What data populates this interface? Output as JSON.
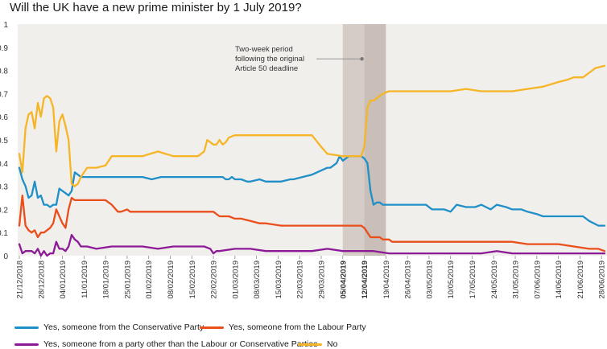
{
  "chart_data": {
    "type": "line",
    "title": "Will the UK have a new prime minister by 1 July 2019?",
    "xlabel": "",
    "ylabel": "",
    "ylim": [
      0,
      1
    ],
    "yticks": [
      "0",
      "0.1",
      "0.2",
      "0.3",
      "0.4",
      "0.5",
      "0.6",
      "0.7",
      "0.8",
      "0.9",
      "1"
    ],
    "xlim": [
      0,
      190
    ],
    "x_tick_labels": [
      "21/12/2018",
      "28/12/2018",
      "04/01/2019",
      "11/01/2019",
      "18/01/2019",
      "25/01/2019",
      "01/02/2019",
      "08/02/2019",
      "15/02/2019",
      "22/02/2019",
      "01/03/2019",
      "08/03/2019",
      "15/03/2019",
      "22/03/2019",
      "29/03/2019",
      "05/04/2019",
      "12/04/2019",
      "19/04/2019",
      "26/04/2019",
      "03/05/2019",
      "10/05/2019",
      "17/05/2019",
      "24/05/2019",
      "31/05/2019",
      "07/06/2019",
      "14/06/2019",
      "21/06/2019",
      "28/06/2019"
    ],
    "x_note": "x values are days since 21/12/2018",
    "bold_ticks": [
      "05/04/2019",
      "12/04/2019"
    ],
    "shaded_periods": [
      [
        105,
        112
      ],
      [
        112,
        119
      ]
    ],
    "annotation": {
      "text_lines": [
        "Two-week period",
        "following the original",
        "Article 50 deadline"
      ],
      "point_x": 112,
      "point_y": 0.85
    },
    "series": [
      {
        "name": "Yes, someone from the Conservative Party",
        "color": "#1f8fc8",
        "x": [
          0,
          1,
          2,
          3,
          4,
          5,
          6,
          7,
          8,
          9,
          10,
          11,
          12,
          13,
          14,
          15,
          16,
          17,
          18,
          19,
          20,
          21,
          22,
          23,
          24,
          25,
          26,
          28,
          30,
          33,
          36,
          40,
          43,
          46,
          47,
          50,
          55,
          60,
          63,
          64,
          65,
          66,
          67,
          68,
          69,
          70,
          72,
          74,
          75,
          78,
          80,
          85,
          88,
          89,
          95,
          100,
          101,
          103,
          104,
          105,
          106,
          107,
          108,
          109,
          110,
          111,
          112,
          113,
          114,
          115,
          116,
          117,
          118,
          120,
          125,
          130,
          132,
          134,
          136,
          138,
          140,
          142,
          145,
          148,
          150,
          153,
          155,
          158,
          160,
          163,
          165,
          168,
          170,
          172,
          175,
          178,
          180,
          183,
          185,
          188,
          190
        ],
        "y": [
          0.38,
          0.33,
          0.3,
          0.25,
          0.26,
          0.32,
          0.25,
          0.26,
          0.22,
          0.22,
          0.21,
          0.22,
          0.22,
          0.29,
          0.28,
          0.27,
          0.26,
          0.28,
          0.36,
          0.35,
          0.34,
          0.34,
          0.34,
          0.34,
          0.34,
          0.34,
          0.34,
          0.34,
          0.34,
          0.34,
          0.34,
          0.34,
          0.33,
          0.34,
          0.34,
          0.34,
          0.34,
          0.34,
          0.34,
          0.34,
          0.34,
          0.34,
          0.33,
          0.33,
          0.34,
          0.33,
          0.33,
          0.32,
          0.32,
          0.33,
          0.32,
          0.32,
          0.33,
          0.33,
          0.35,
          0.38,
          0.38,
          0.4,
          0.43,
          0.41,
          0.42,
          0.43,
          0.43,
          0.43,
          0.43,
          0.43,
          0.42,
          0.4,
          0.28,
          0.22,
          0.23,
          0.23,
          0.22,
          0.22,
          0.22,
          0.22,
          0.22,
          0.2,
          0.2,
          0.2,
          0.19,
          0.22,
          0.21,
          0.21,
          0.22,
          0.2,
          0.22,
          0.21,
          0.2,
          0.2,
          0.19,
          0.18,
          0.17,
          0.17,
          0.17,
          0.17,
          0.17,
          0.17,
          0.15,
          0.13,
          0.13
        ]
      },
      {
        "name": "Yes, someone from the Labour Party",
        "color": "#ea4e1b",
        "x": [
          0,
          1,
          2,
          3,
          4,
          5,
          6,
          7,
          8,
          9,
          10,
          11,
          12,
          13,
          14,
          15,
          16,
          17,
          18,
          19,
          20,
          22,
          25,
          28,
          30,
          32,
          33,
          35,
          36,
          40,
          45,
          50,
          55,
          60,
          63,
          64,
          65,
          68,
          70,
          72,
          75,
          78,
          80,
          85,
          88,
          90,
          95,
          100,
          105,
          110,
          111,
          112,
          113,
          114,
          115,
          116,
          117,
          118,
          119,
          120,
          121,
          125,
          130,
          135,
          140,
          145,
          150,
          155,
          158,
          160,
          165,
          170,
          172,
          175,
          180,
          185,
          188,
          190
        ],
        "y": [
          0.13,
          0.26,
          0.13,
          0.11,
          0.1,
          0.11,
          0.08,
          0.1,
          0.1,
          0.11,
          0.12,
          0.14,
          0.2,
          0.17,
          0.14,
          0.12,
          0.2,
          0.25,
          0.24,
          0.24,
          0.24,
          0.24,
          0.24,
          0.24,
          0.22,
          0.19,
          0.19,
          0.2,
          0.19,
          0.19,
          0.19,
          0.19,
          0.19,
          0.19,
          0.19,
          0.18,
          0.17,
          0.17,
          0.16,
          0.16,
          0.15,
          0.14,
          0.14,
          0.13,
          0.13,
          0.13,
          0.13,
          0.13,
          0.13,
          0.13,
          0.13,
          0.12,
          0.1,
          0.08,
          0.08,
          0.08,
          0.08,
          0.07,
          0.07,
          0.07,
          0.06,
          0.06,
          0.06,
          0.06,
          0.06,
          0.06,
          0.06,
          0.06,
          0.06,
          0.06,
          0.05,
          0.05,
          0.05,
          0.05,
          0.04,
          0.03,
          0.03,
          0.02
        ]
      },
      {
        "name": "Yes, someone from a party other than the Labour or Conservative Parties",
        "color": "#8c1a96",
        "x": [
          0,
          1,
          2,
          3,
          4,
          5,
          6,
          7,
          8,
          9,
          10,
          11,
          12,
          13,
          14,
          15,
          16,
          17,
          18,
          19,
          20,
          22,
          25,
          30,
          35,
          40,
          45,
          50,
          55,
          60,
          62,
          63,
          64,
          65,
          70,
          75,
          80,
          85,
          90,
          95,
          100,
          105,
          110,
          115,
          120,
          125,
          130,
          135,
          140,
          145,
          150,
          155,
          160,
          165,
          170,
          175,
          180,
          185,
          190
        ],
        "y": [
          0.05,
          0.01,
          0.02,
          0.02,
          0.02,
          0.01,
          0.03,
          0.0,
          0.02,
          0.0,
          0.01,
          0.01,
          0.06,
          0.03,
          0.03,
          0.02,
          0.04,
          0.09,
          0.07,
          0.06,
          0.04,
          0.04,
          0.03,
          0.04,
          0.04,
          0.04,
          0.03,
          0.04,
          0.04,
          0.04,
          0.03,
          0.01,
          0.02,
          0.02,
          0.03,
          0.03,
          0.02,
          0.02,
          0.02,
          0.02,
          0.03,
          0.02,
          0.02,
          0.02,
          0.01,
          0.01,
          0.01,
          0.01,
          0.01,
          0.01,
          0.01,
          0.02,
          0.01,
          0.01,
          0.01,
          0.01,
          0.01,
          0.01,
          0.01
        ]
      },
      {
        "name": "No",
        "color": "#f6b526",
        "x": [
          0,
          1,
          2,
          3,
          4,
          5,
          6,
          7,
          8,
          9,
          10,
          11,
          12,
          13,
          14,
          15,
          16,
          17,
          18,
          19,
          20,
          22,
          24,
          25,
          28,
          30,
          33,
          35,
          36,
          38,
          40,
          45,
          50,
          55,
          58,
          59,
          60,
          61,
          62,
          63,
          64,
          65,
          66,
          67,
          68,
          70,
          72,
          75,
          80,
          85,
          90,
          95,
          98,
          100,
          105,
          110,
          111,
          112,
          113,
          114,
          115,
          116,
          117,
          118,
          120,
          125,
          130,
          135,
          140,
          145,
          150,
          155,
          160,
          165,
          170,
          175,
          178,
          180,
          183,
          185,
          187,
          190
        ],
        "y": [
          0.44,
          0.36,
          0.55,
          0.61,
          0.62,
          0.55,
          0.66,
          0.6,
          0.68,
          0.69,
          0.68,
          0.64,
          0.45,
          0.58,
          0.61,
          0.56,
          0.5,
          0.31,
          0.3,
          0.31,
          0.34,
          0.38,
          0.38,
          0.38,
          0.39,
          0.43,
          0.43,
          0.43,
          0.43,
          0.43,
          0.43,
          0.45,
          0.43,
          0.43,
          0.43,
          0.44,
          0.45,
          0.5,
          0.49,
          0.48,
          0.48,
          0.5,
          0.48,
          0.49,
          0.51,
          0.52,
          0.52,
          0.52,
          0.52,
          0.52,
          0.52,
          0.52,
          0.47,
          0.44,
          0.43,
          0.43,
          0.43,
          0.47,
          0.64,
          0.67,
          0.67,
          0.68,
          0.69,
          0.7,
          0.71,
          0.71,
          0.71,
          0.71,
          0.71,
          0.72,
          0.71,
          0.71,
          0.71,
          0.72,
          0.73,
          0.75,
          0.76,
          0.77,
          0.77,
          0.79,
          0.81,
          0.82
        ]
      }
    ]
  }
}
